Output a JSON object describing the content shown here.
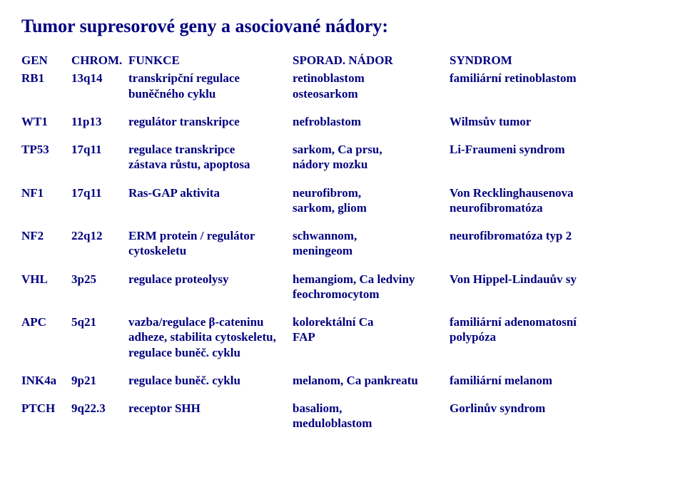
{
  "title": "Tumor supresorové geny a asociované nádory:",
  "header": {
    "gen": "GEN",
    "chrom": "CHROM.",
    "func": "FUNKCE",
    "spor": "SPORAD. NÁDOR",
    "synd": "SYNDROM"
  },
  "rows": [
    {
      "gen": "RB1",
      "chrom": "13q14",
      "func": [
        "transkripční regulace",
        "buněčného cyklu"
      ],
      "spor": [
        "retinoblastom",
        "osteosarkom"
      ],
      "synd": [
        "familiární retinoblastom"
      ]
    },
    {
      "gen": "WT1",
      "chrom": "11p13",
      "func": [
        "regulátor transkripce"
      ],
      "spor": [
        "nefroblastom"
      ],
      "synd": [
        "Wilmsův tumor"
      ]
    },
    {
      "gen": "TP53",
      "chrom": "17q11",
      "func": [
        "regulace transkripce",
        "zástava růstu, apoptosa"
      ],
      "spor": [
        "sarkom, Ca prsu,",
        "nádory mozku"
      ],
      "synd": [
        "Li-Fraumeni syndrom"
      ]
    },
    {
      "gen": "NF1",
      "chrom": "17q11",
      "func": [
        "Ras-GAP aktivita"
      ],
      "spor": [
        "neurofibrom,",
        "sarkom, gliom"
      ],
      "synd": [
        "Von Recklinghausenova",
        "neurofibromatóza"
      ]
    },
    {
      "gen": "NF2",
      "chrom": "22q12",
      "func": [
        "ERM protein / regulátor",
        "cytoskeletu"
      ],
      "spor": [
        "schwannom,",
        "meningeom"
      ],
      "synd": [
        "neurofibromatóza typ 2"
      ]
    },
    {
      "gen": "VHL",
      "chrom": "3p25",
      "func": [
        "regulace proteolysy"
      ],
      "spor": [
        "hemangiom, Ca ledviny",
        "feochromocytom"
      ],
      "synd": [
        "Von Hippel-Lindauův sy"
      ]
    },
    {
      "gen": "APC",
      "chrom": "5q21",
      "func": [
        "vazba/regulace β-cateninu",
        "adheze, stabilita cytoskeletu,",
        "regulace buněč. cyklu"
      ],
      "spor": [
        "kolorektální Ca",
        "FAP"
      ],
      "synd": [
        "familiární adenomatosní",
        "polypóza"
      ]
    },
    {
      "gen": "INK4a",
      "chrom": "9p21",
      "func": [
        "regulace buněč. cyklu"
      ],
      "spor": [
        "melanom, Ca pankreatu"
      ],
      "synd": [
        "familiární melanom"
      ]
    },
    {
      "gen": "PTCH",
      "chrom": "9q22.3",
      "func": [
        "receptor SHH"
      ],
      "spor": [
        "basaliom,",
        "meduloblastom"
      ],
      "synd": [
        "Gorlinův syndrom"
      ]
    }
  ]
}
